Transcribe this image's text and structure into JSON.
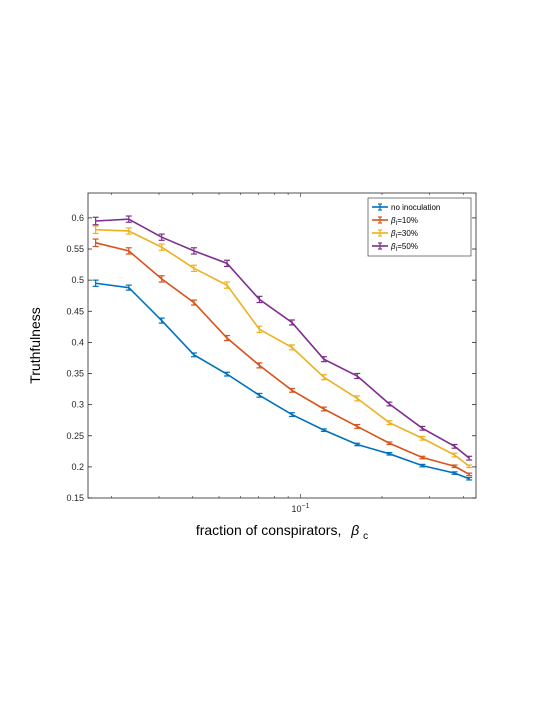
{
  "chart_data": {
    "type": "line",
    "xscale": "log",
    "xlabel": "fraction of conspirators,",
    "xlabel_symbol": "β",
    "xlabel_sub": "c",
    "ylabel": "Truthfulness",
    "ylim": [
      0.15,
      0.64
    ],
    "xlim": [
      0.0164,
      0.445
    ],
    "yticks": [
      0.15,
      0.2,
      0.25,
      0.3,
      0.35,
      0.4,
      0.45,
      0.5,
      0.55,
      0.6
    ],
    "ytick_labels": [
      "0.15",
      "0.2",
      "0.25",
      "0.3",
      "0.35",
      "0.4",
      "0.45",
      "0.5",
      "0.55",
      "0.6"
    ],
    "xtick_base": "10",
    "xtick_exp": "−1",
    "xtick_value": 0.1,
    "grid": false,
    "legend_position": "top-right",
    "x": [
      0.0175,
      0.0232,
      0.0307,
      0.0404,
      0.0535,
      0.0705,
      0.093,
      0.122,
      0.162,
      0.213,
      0.282,
      0.371,
      0.42
    ],
    "series": [
      {
        "name": "no inoculation",
        "color": "#0072BD",
        "values": [
          0.495,
          0.488,
          0.435,
          0.38,
          0.349,
          0.315,
          0.284,
          0.259,
          0.236,
          0.221,
          0.202,
          0.19,
          0.181
        ],
        "err": [
          0.005,
          0.004,
          0.004,
          0.003,
          0.003,
          0.003,
          0.003,
          0.002,
          0.002,
          0.002,
          0.002,
          0.002,
          0.002
        ]
      },
      {
        "name_prefix": "β",
        "name_sub": "I",
        "name_suffix": "=10%",
        "color": "#D95319",
        "values": [
          0.56,
          0.547,
          0.502,
          0.464,
          0.407,
          0.363,
          0.323,
          0.293,
          0.265,
          0.238,
          0.215,
          0.201,
          0.188
        ],
        "err": [
          0.006,
          0.005,
          0.005,
          0.004,
          0.004,
          0.004,
          0.003,
          0.003,
          0.003,
          0.002,
          0.002,
          0.002,
          0.002
        ]
      },
      {
        "name_prefix": "β",
        "name_sub": "I",
        "name_suffix": "=30%",
        "color": "#EDB120",
        "values": [
          0.581,
          0.579,
          0.553,
          0.519,
          0.492,
          0.421,
          0.392,
          0.344,
          0.31,
          0.271,
          0.246,
          0.219,
          0.201
        ],
        "err": [
          0.006,
          0.005,
          0.005,
          0.005,
          0.005,
          0.005,
          0.004,
          0.004,
          0.004,
          0.003,
          0.003,
          0.003,
          0.002
        ]
      },
      {
        "name_prefix": "β",
        "name_sub": "I",
        "name_suffix": "=50%",
        "color": "#7E2F8E",
        "values": [
          0.595,
          0.598,
          0.569,
          0.547,
          0.527,
          0.469,
          0.432,
          0.373,
          0.346,
          0.301,
          0.262,
          0.233,
          0.214
        ],
        "err": [
          0.006,
          0.005,
          0.005,
          0.005,
          0.005,
          0.005,
          0.004,
          0.004,
          0.004,
          0.003,
          0.003,
          0.003,
          0.003
        ]
      }
    ]
  }
}
